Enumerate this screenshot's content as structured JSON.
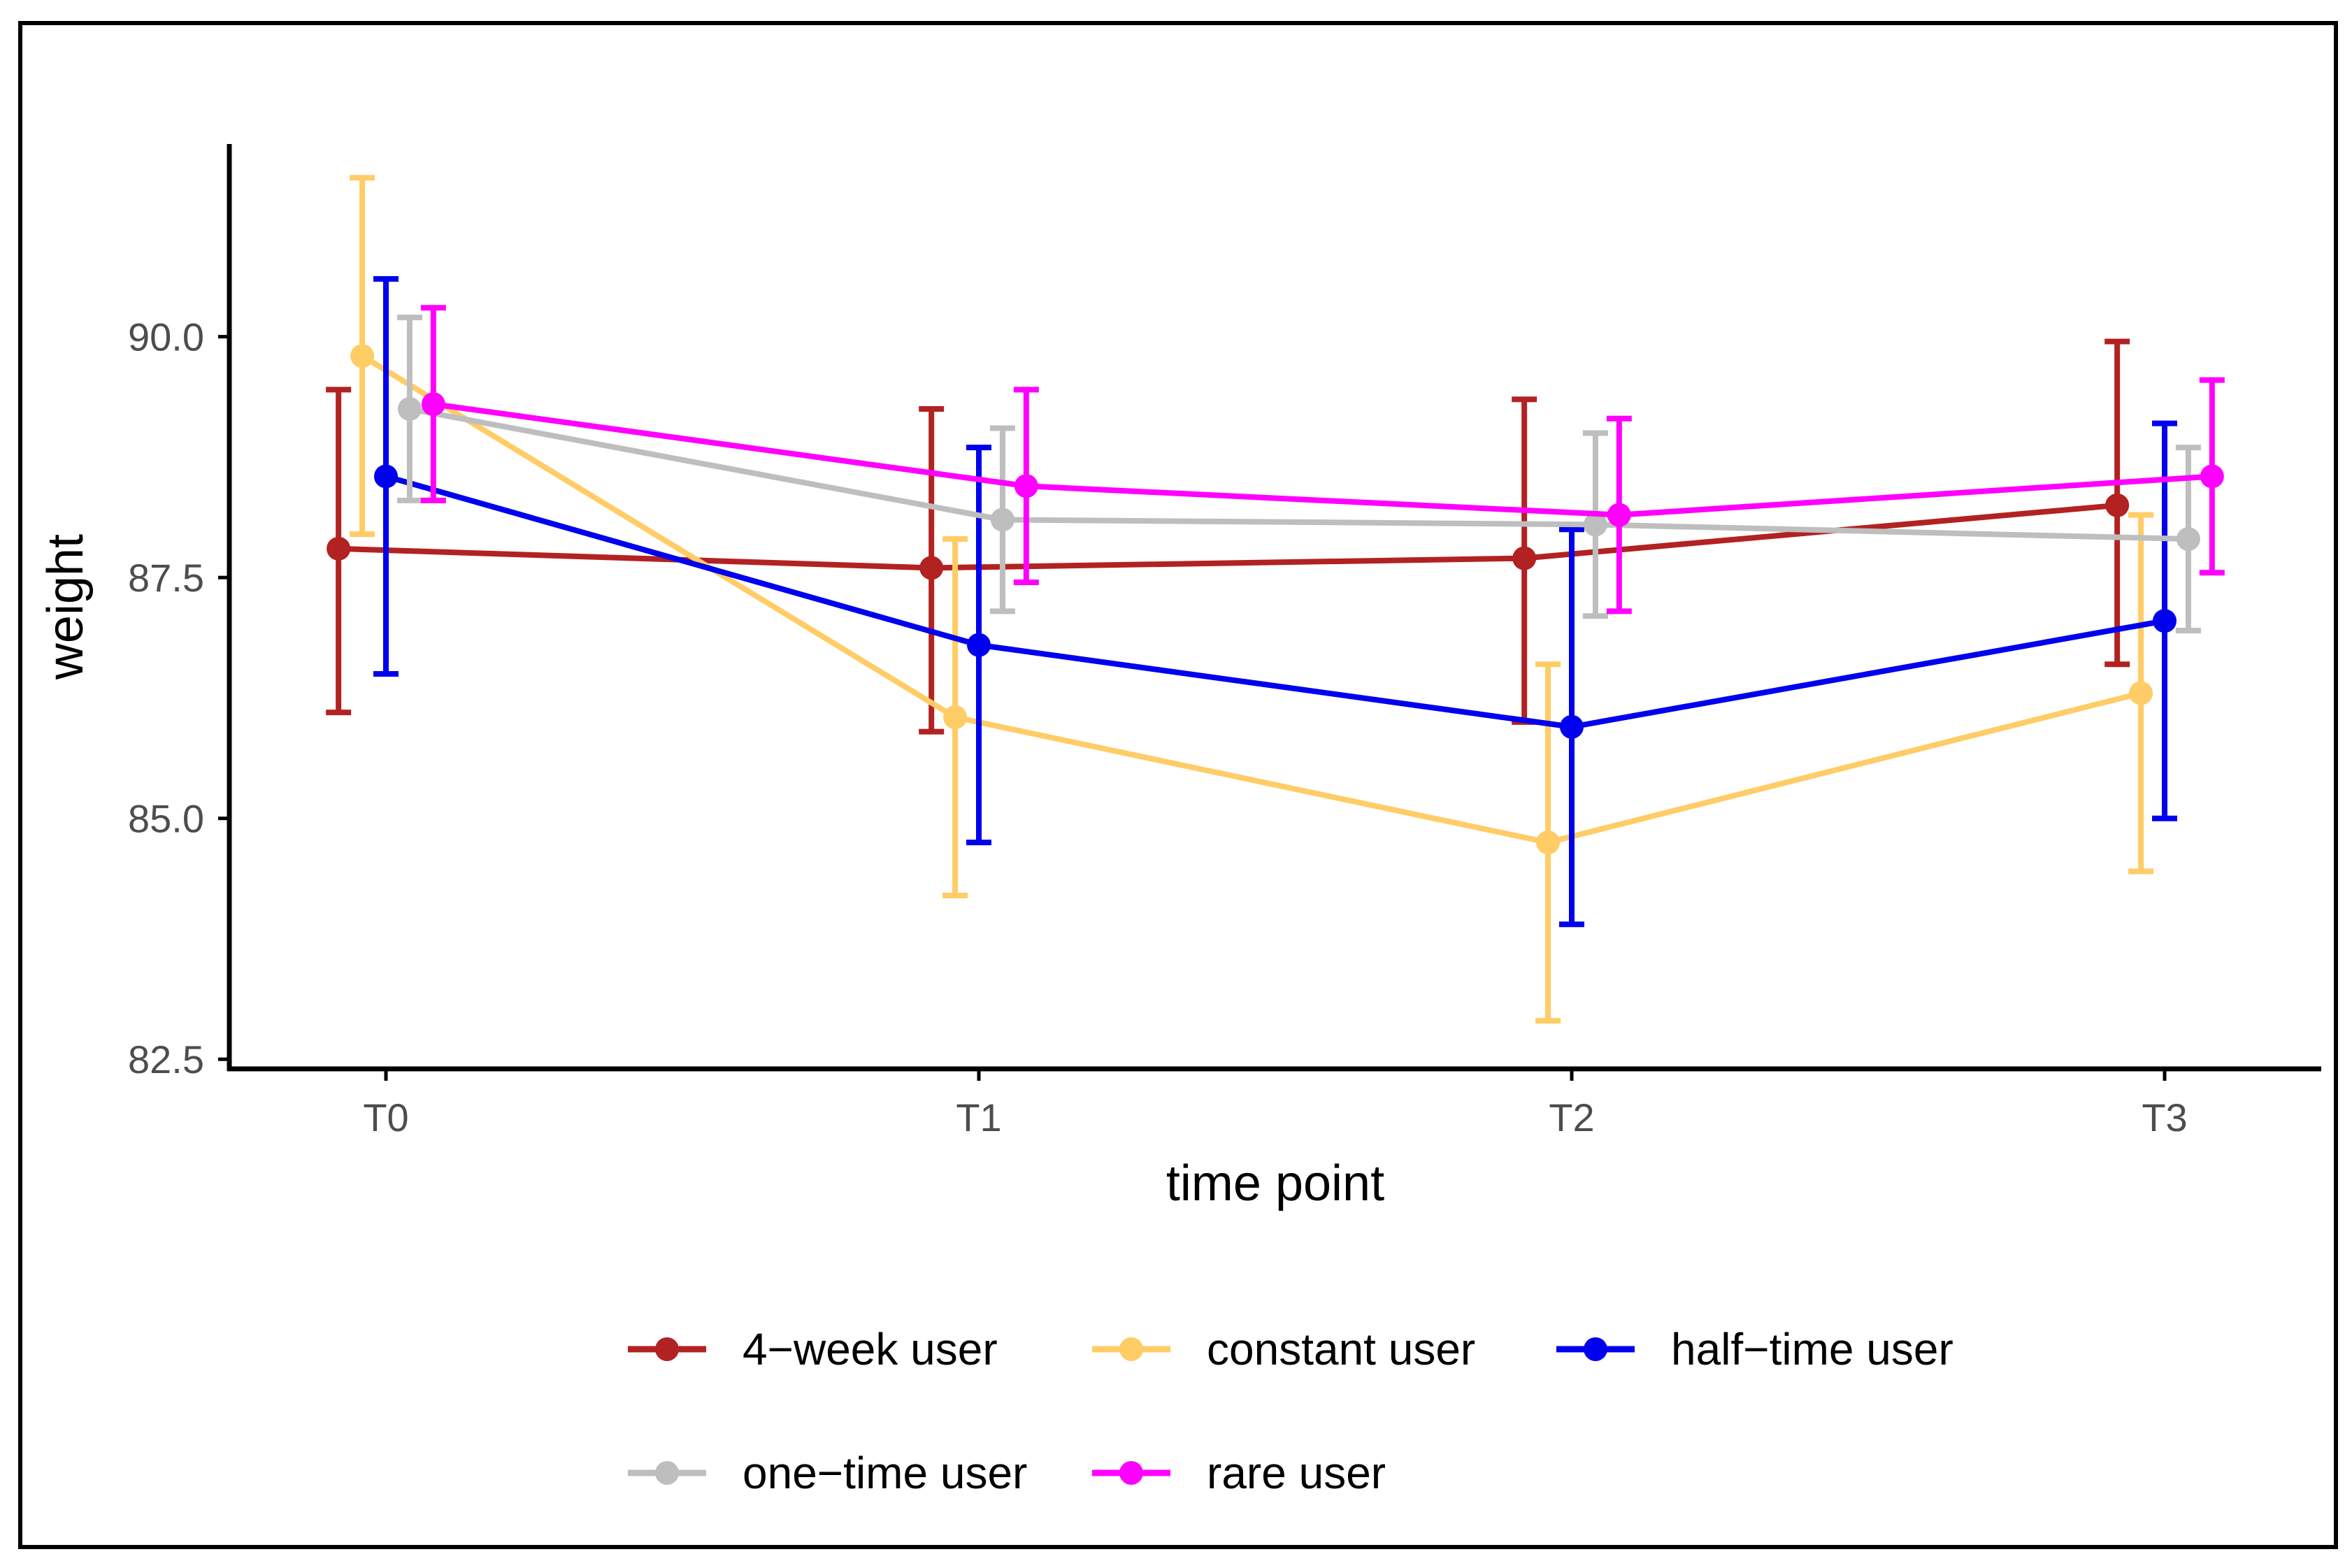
{
  "chart_data": {
    "type": "line",
    "xlabel": "time point",
    "ylabel": "weight",
    "categories": [
      "T0",
      "T1",
      "T2",
      "T3"
    ],
    "ylim": [
      82.4,
      92.0
    ],
    "yticks": [
      "82.5",
      "85.0",
      "87.5",
      "90.0"
    ],
    "ytick_values": [
      82.5,
      85.0,
      87.5,
      90.0
    ],
    "grid": false,
    "legend_position": "bottom",
    "series": [
      {
        "name": "4−week user",
        "color": "#B22222",
        "offset": -0.08,
        "values": [
          87.8,
          87.6,
          87.7,
          88.25
        ],
        "lower": [
          86.1,
          85.9,
          86.0,
          86.6
        ],
        "upper": [
          89.45,
          89.25,
          89.35,
          89.95
        ]
      },
      {
        "name": "constant user",
        "color": "#FFCC66",
        "offset": -0.04,
        "values": [
          89.8,
          86.05,
          84.75,
          86.3
        ],
        "lower": [
          87.95,
          84.2,
          82.9,
          84.45
        ],
        "upper": [
          91.65,
          87.9,
          86.6,
          88.15
        ]
      },
      {
        "name": "half−time user",
        "color": "#0000EE",
        "offset": 0.0,
        "values": [
          88.55,
          86.8,
          85.95,
          87.05
        ],
        "lower": [
          86.5,
          84.75,
          83.9,
          85.0
        ],
        "upper": [
          90.6,
          88.85,
          88.0,
          89.1
        ]
      },
      {
        "name": "one−time user",
        "color": "#BEBEBE",
        "offset": 0.04,
        "values": [
          89.25,
          88.1,
          88.05,
          87.9
        ],
        "lower": [
          88.3,
          87.15,
          87.1,
          86.95
        ],
        "upper": [
          90.2,
          89.05,
          89.0,
          88.85
        ]
      },
      {
        "name": "rare user",
        "color": "#FF00FF",
        "offset": 0.08,
        "values": [
          89.3,
          88.45,
          88.15,
          88.55
        ],
        "lower": [
          88.3,
          87.45,
          87.15,
          87.55
        ],
        "upper": [
          90.3,
          89.45,
          89.15,
          89.55
        ]
      }
    ]
  }
}
